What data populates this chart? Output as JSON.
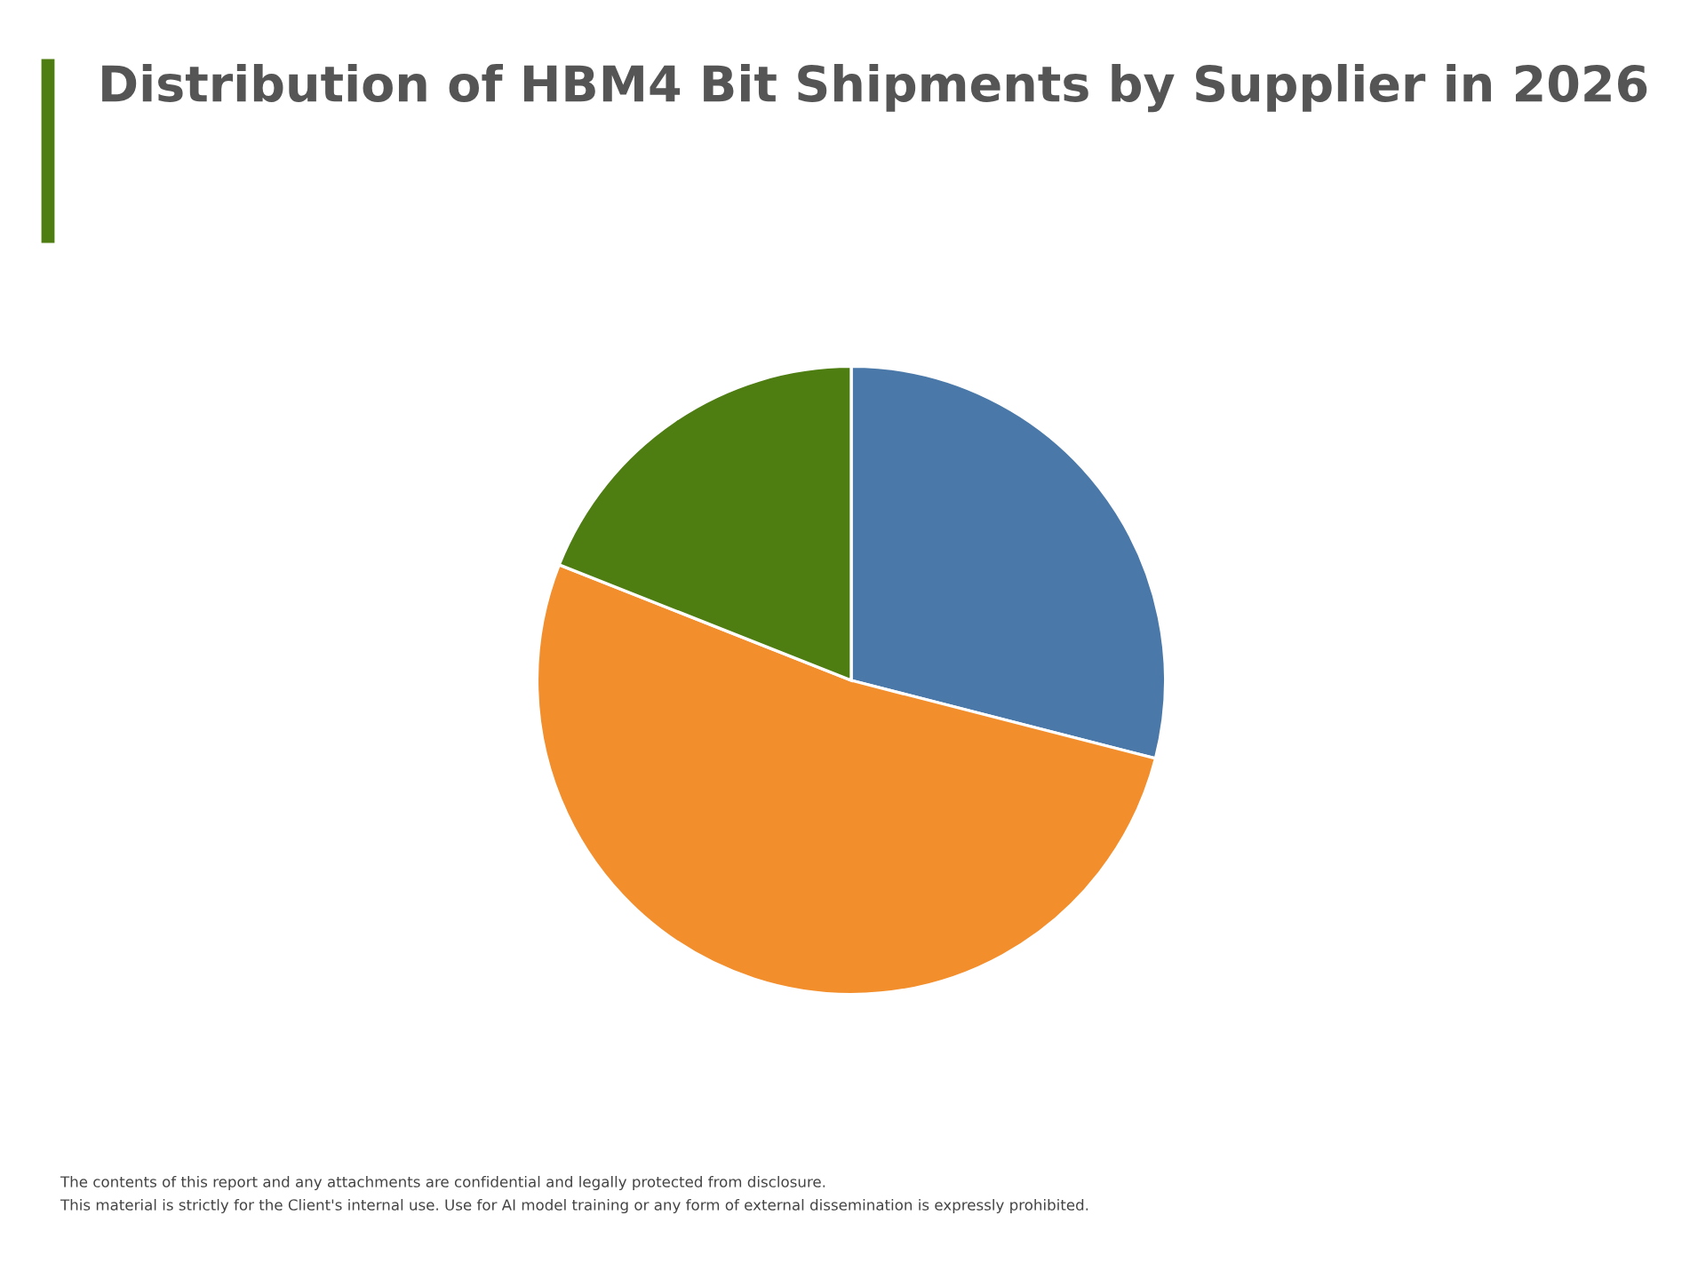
{
  "chart_data": {
    "type": "pie",
    "title": "Distribution of HBM4 Bit Shipments by Supplier in 2026",
    "categories": [
      null,
      null,
      null
    ],
    "values": [
      29,
      52,
      19
    ],
    "colors": [
      "#4a78a8",
      "#f28e2c",
      "#4e7d12"
    ],
    "annotations": [
      "The contents of this report and any attachments are confidential and legally protected from disclosure.",
      "This material is strictly for the Client's internal use. Use for AI model training or any form of external dissemination is expressly prohibited."
    ]
  }
}
